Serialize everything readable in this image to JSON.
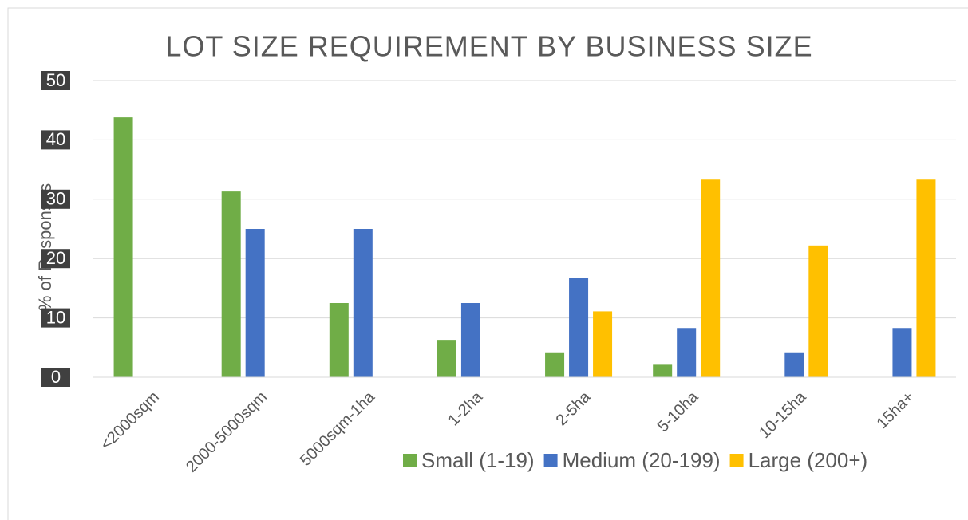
{
  "chart_data": {
    "type": "bar",
    "title": "LOT SIZE REQUIREMENT BY BUSINESS SIZE",
    "y_label": "% of Responses",
    "categories": [
      "<2000sqm",
      "2000-5000sqm",
      "5000sqm-1ha",
      "1-2ha",
      "2-5ha",
      "5-10ha",
      "10-15ha",
      "15ha+"
    ],
    "series": [
      {
        "name": "Small (1-19)",
        "color": "#70ad47",
        "values": [
          43.8,
          31.3,
          12.5,
          6.3,
          4.2,
          2.1,
          0,
          0
        ]
      },
      {
        "name": "Medium (20-199)",
        "color": "#4472c4",
        "values": [
          0,
          25,
          25,
          12.5,
          16.7,
          8.3,
          4.2,
          8.3
        ]
      },
      {
        "name": "Large (200+)",
        "color": "#ffc000",
        "values": [
          0,
          0,
          0,
          0,
          11.1,
          33.3,
          22.2,
          33.3
        ]
      }
    ],
    "ylim": [
      0,
      50
    ],
    "yticks": [
      0,
      10,
      20,
      30,
      40,
      50
    ],
    "grid": true,
    "legend": "bottom-right"
  }
}
